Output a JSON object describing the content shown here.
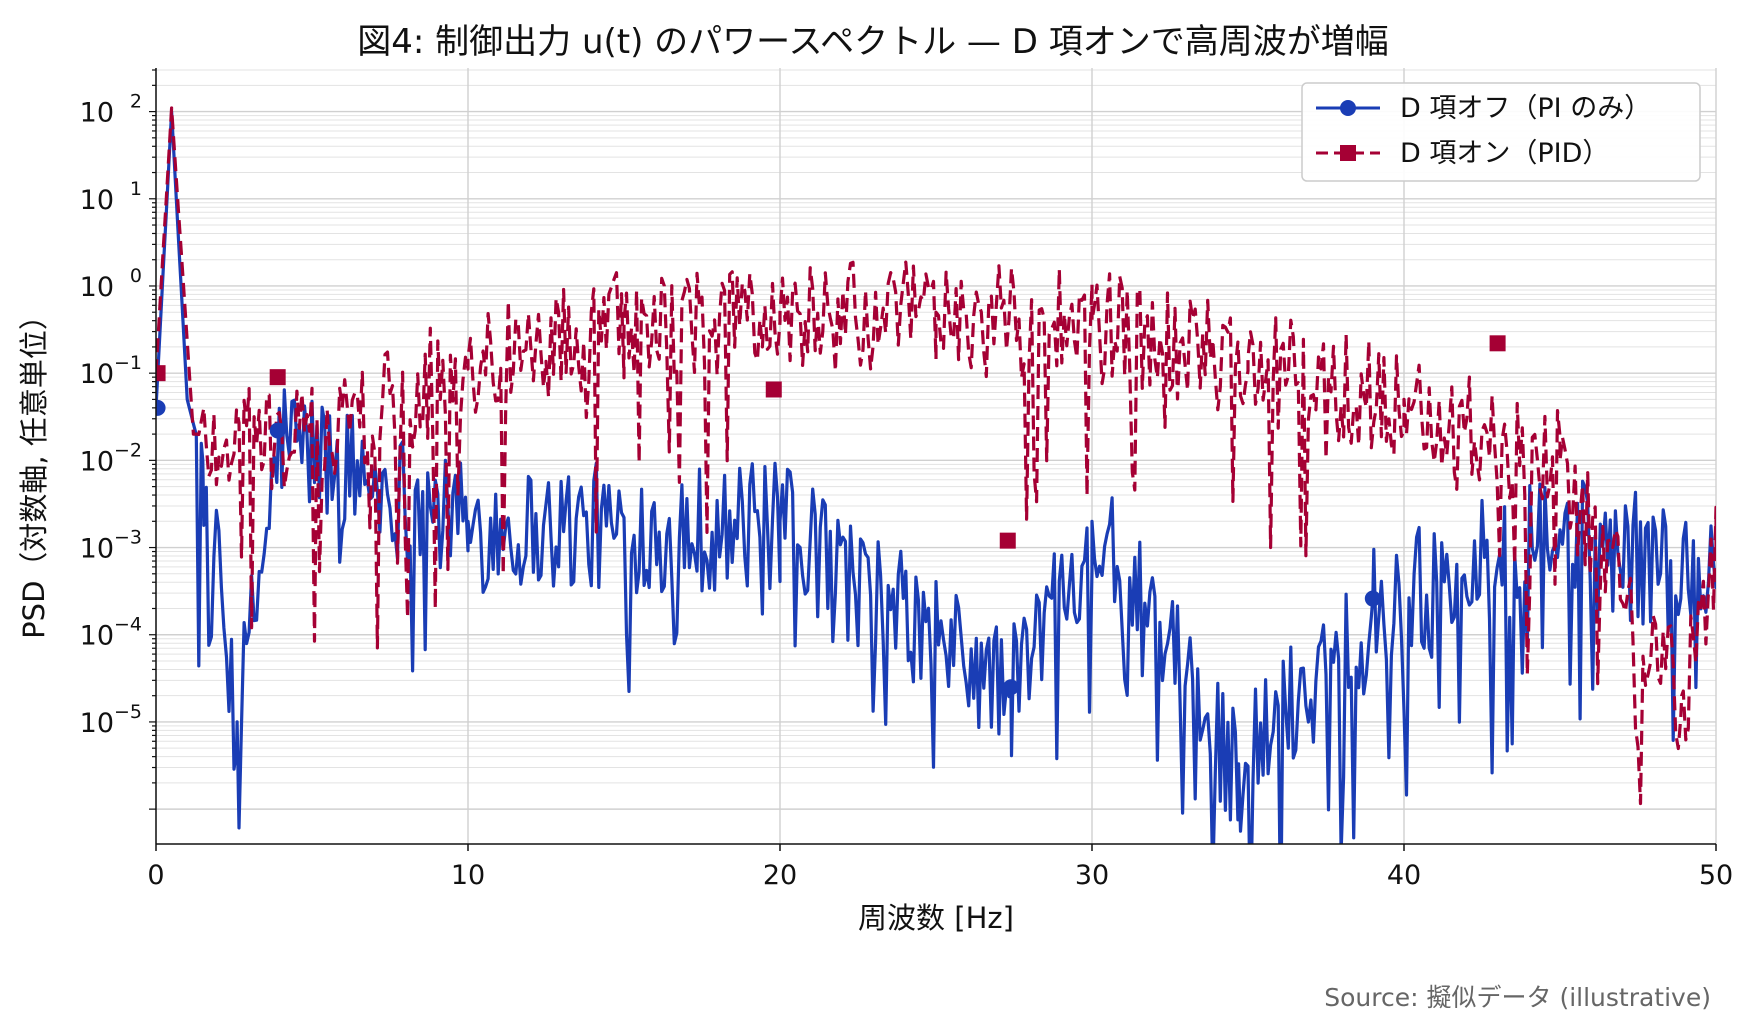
{
  "chart_data": {
    "type": "line",
    "title": "図4: 制御出力 u(t) のパワースペクトル — D 項オンで高周波が増幅",
    "xlabel": "周波数 [Hz]",
    "ylabel": "PSD（対数軸, 任意単位）",
    "xlim": [
      0,
      50
    ],
    "ylim_log10": [
      -6.4,
      2.5
    ],
    "yscale": "log",
    "grid": true,
    "legend_position": "top-right",
    "x_ticks": [
      0,
      10,
      20,
      30,
      40,
      50
    ],
    "y_ticks": [
      {
        "base": "10",
        "exp": "2"
      },
      {
        "base": "10",
        "exp": "1"
      },
      {
        "base": "10",
        "exp": "0"
      },
      {
        "base": "10",
        "exp": "−1"
      },
      {
        "base": "10",
        "exp": "−2"
      },
      {
        "base": "10",
        "exp": "−3"
      },
      {
        "base": "10",
        "exp": "−4"
      },
      {
        "base": "10",
        "exp": "−5"
      }
    ],
    "series": [
      {
        "name": "D 項オフ（PI のみ）",
        "color": "#1a3db5",
        "line_style": "solid",
        "marker": "circle",
        "points": [
          [
            0.0,
            0.04
          ],
          [
            0.5,
            100
          ],
          [
            1.0,
            0.05
          ],
          [
            1.5,
            0.01
          ],
          [
            2.6,
            1e-05
          ],
          [
            4.0,
            0.022
          ],
          [
            10,
            0.002
          ],
          [
            20,
            0.002
          ],
          [
            27.4,
            2.5e-05
          ],
          [
            30,
            0.002
          ],
          [
            34.7,
            3.3e-06
          ],
          [
            39.0,
            0.00026
          ],
          [
            45,
            0.0016
          ],
          [
            50,
            0.0005
          ]
        ],
        "marker_points": [
          [
            0.05,
            0.04
          ],
          [
            3.9,
            0.022
          ],
          [
            27.4,
            2.5e-05
          ],
          [
            39.0,
            0.00026
          ]
        ]
      },
      {
        "name": "D 項オン（PID）",
        "color": "#a50034",
        "line_style": "dashed",
        "marker": "square",
        "points": [
          [
            0.0,
            0.1
          ],
          [
            0.5,
            110
          ],
          [
            1.2,
            0.02
          ],
          [
            5,
            0.02
          ],
          [
            10,
            0.15
          ],
          [
            15,
            0.4
          ],
          [
            20,
            0.5
          ],
          [
            25,
            0.5
          ],
          [
            30,
            0.4
          ],
          [
            35,
            0.15
          ],
          [
            40,
            0.05
          ],
          [
            45,
            0.01
          ],
          [
            48.9,
            2e-05
          ],
          [
            50,
            0.0008
          ]
        ],
        "marker_points": [
          [
            0.05,
            0.1
          ],
          [
            3.9,
            0.09
          ],
          [
            19.8,
            0.065
          ],
          [
            27.3,
            0.0012
          ],
          [
            43.0,
            0.22
          ]
        ]
      }
    ]
  },
  "source": "Source: 擬似データ (illustrative)"
}
